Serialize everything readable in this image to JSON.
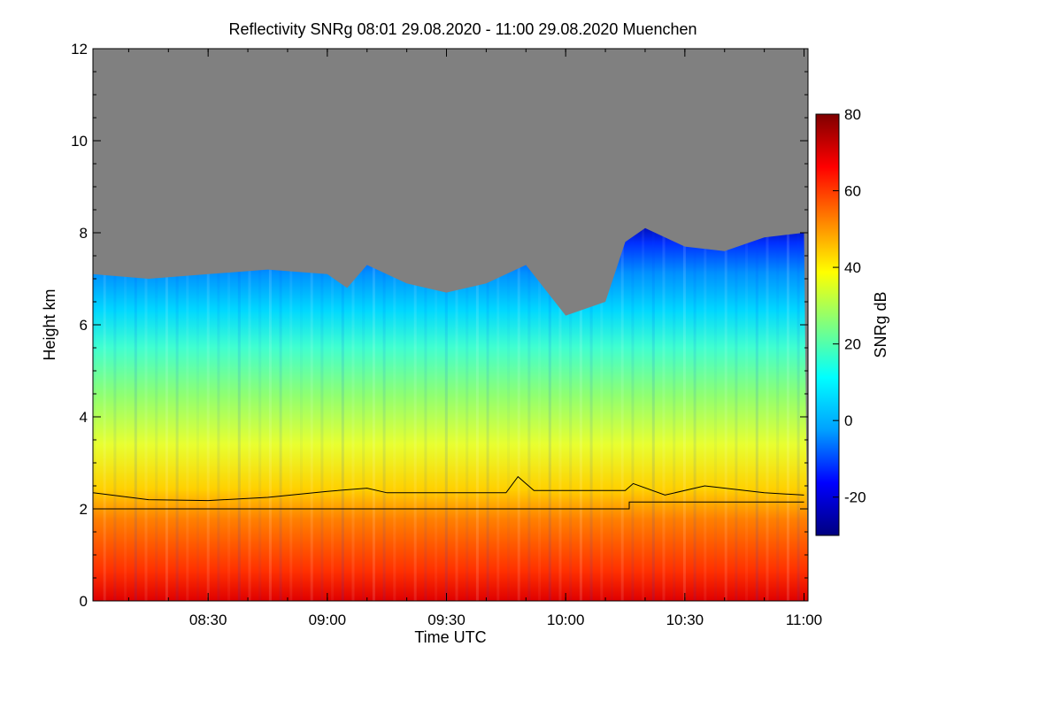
{
  "chart_data": {
    "type": "heatmap",
    "title": "Reflectivity SNRg   08:01 29.08.2020 - 11:00 29.08.2020 Muenchen",
    "xlabel": "Time UTC",
    "ylabel": "Height km",
    "colorbar_label": "SNRg dB",
    "xlim": [
      "08:01",
      "11:01"
    ],
    "x_ticks": [
      "08:30",
      "09:00",
      "09:30",
      "10:00",
      "10:30",
      "11:00"
    ],
    "ylim": [
      0,
      12
    ],
    "y_ticks": [
      "0",
      "2",
      "4",
      "6",
      "8",
      "10",
      "12"
    ],
    "colorbar_range": [
      -30,
      80
    ],
    "colorbar_ticks": [
      "-20",
      "0",
      "20",
      "40",
      "60",
      "80"
    ],
    "colormap": [
      "#00007f",
      "#0000ff",
      "#00a0ff",
      "#00ffff",
      "#7fff7f",
      "#ffff00",
      "#ff8000",
      "#ff0000",
      "#7f0000"
    ],
    "no_data_color": "#808080",
    "signal_top_km": [
      {
        "t": "08:01",
        "h": 7.1
      },
      {
        "t": "08:15",
        "h": 7.0
      },
      {
        "t": "08:30",
        "h": 7.1
      },
      {
        "t": "08:45",
        "h": 7.2
      },
      {
        "t": "09:00",
        "h": 7.1
      },
      {
        "t": "09:05",
        "h": 6.8
      },
      {
        "t": "09:10",
        "h": 7.3
      },
      {
        "t": "09:20",
        "h": 6.9
      },
      {
        "t": "09:30",
        "h": 6.7
      },
      {
        "t": "09:40",
        "h": 6.9
      },
      {
        "t": "09:50",
        "h": 7.3
      },
      {
        "t": "10:00",
        "h": 6.2
      },
      {
        "t": "10:10",
        "h": 6.5
      },
      {
        "t": "10:15",
        "h": 7.8
      },
      {
        "t": "10:20",
        "h": 8.1
      },
      {
        "t": "10:30",
        "h": 7.7
      },
      {
        "t": "10:40",
        "h": 7.6
      },
      {
        "t": "10:50",
        "h": 7.9
      },
      {
        "t": "11:00",
        "h": 8.0
      }
    ],
    "line_upper_km": [
      {
        "t": "08:01",
        "h": 2.35
      },
      {
        "t": "08:15",
        "h": 2.2
      },
      {
        "t": "08:30",
        "h": 2.18
      },
      {
        "t": "08:45",
        "h": 2.25
      },
      {
        "t": "09:00",
        "h": 2.38
      },
      {
        "t": "09:10",
        "h": 2.45
      },
      {
        "t": "09:15",
        "h": 2.35
      },
      {
        "t": "09:45",
        "h": 2.35
      },
      {
        "t": "09:48",
        "h": 2.7
      },
      {
        "t": "09:52",
        "h": 2.4
      },
      {
        "t": "10:15",
        "h": 2.4
      },
      {
        "t": "10:17",
        "h": 2.55
      },
      {
        "t": "10:25",
        "h": 2.3
      },
      {
        "t": "10:35",
        "h": 2.5
      },
      {
        "t": "10:50",
        "h": 2.35
      },
      {
        "t": "11:00",
        "h": 2.3
      }
    ],
    "line_lower_km": [
      {
        "t": "08:01",
        "h": 2.0
      },
      {
        "t": "10:16",
        "h": 2.0
      },
      {
        "t": "10:16",
        "h": 2.15
      },
      {
        "t": "11:00",
        "h": 2.15
      }
    ]
  }
}
